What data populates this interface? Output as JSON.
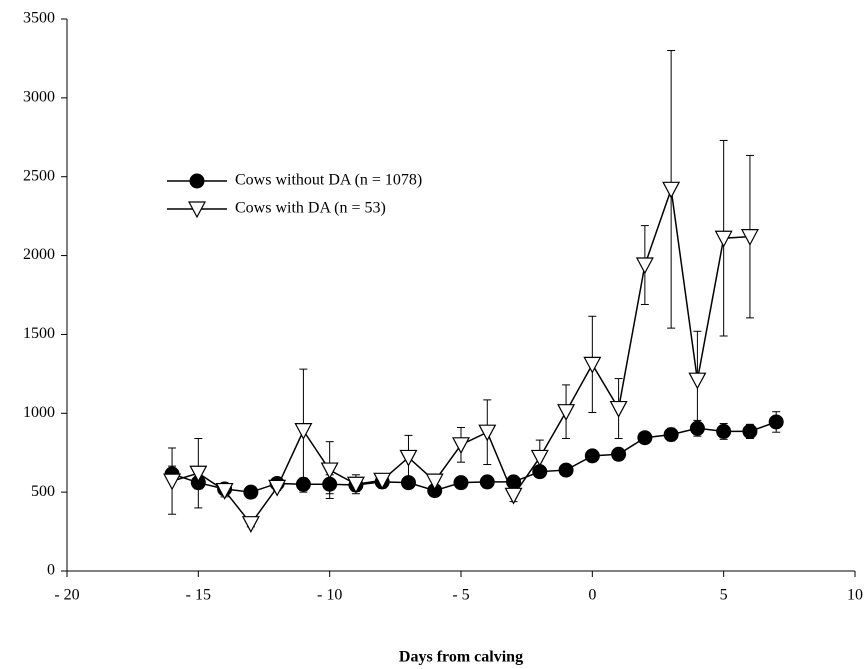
{
  "chart_data": {
    "type": "line",
    "x_label": "Days from calving",
    "xlim": [
      -20,
      10
    ],
    "xticks": [
      {
        "value": -20,
        "label": "- 20"
      },
      {
        "value": -15,
        "label": "- 15"
      },
      {
        "value": -10,
        "label": "- 10"
      },
      {
        "value": -5,
        "label": "- 5"
      },
      0,
      5,
      10
    ],
    "ylim": [
      0,
      3500
    ],
    "yticks": [
      0,
      500,
      1000,
      1500,
      2000,
      2500,
      3000,
      3500
    ],
    "grid": false,
    "legend": "upper left",
    "series": [
      {
        "name": "Cows without  DA (n = 1078)",
        "color": "#000000",
        "marker": "circle",
        "x": [
          -16,
          -15,
          -14,
          -13,
          -12,
          -11,
          -10,
          -9,
          -8,
          -7,
          -6,
          -5,
          -4,
          -3,
          -2,
          -1,
          0,
          1,
          2,
          3,
          4,
          5,
          6,
          7
        ],
        "values": [
          615,
          560,
          520,
          500,
          555,
          550,
          550,
          545,
          565,
          560,
          510,
          560,
          565,
          565,
          630,
          640,
          730,
          740,
          845,
          865,
          905,
          885,
          885,
          945
        ],
        "errors": [
          50,
          40,
          30,
          25,
          30,
          40,
          60,
          40,
          40,
          35,
          25,
          30,
          30,
          30,
          30,
          30,
          30,
          30,
          35,
          40,
          50,
          50,
          45,
          65
        ]
      },
      {
        "name": "Cows with  DA (n = 53)",
        "color": "#000000",
        "marker": "triangle-down",
        "x": [
          -16,
          -15,
          -14,
          -13,
          -12,
          -11,
          -10,
          -9,
          -8,
          -7,
          -6,
          -5,
          -4,
          -3,
          -2,
          -1,
          0,
          1,
          2,
          3,
          4,
          5,
          6
        ],
        "values": [
          570,
          620,
          510,
          300,
          530,
          890,
          640,
          550,
          575,
          720,
          570,
          800,
          880,
          480,
          720,
          1010,
          1310,
          1030,
          1940,
          2420,
          1210,
          2110,
          2120
        ],
        "errors": [
          210,
          220,
          40,
          20,
          20,
          390,
          180,
          60,
          40,
          140,
          30,
          110,
          205,
          40,
          110,
          170,
          305,
          190,
          250,
          880,
          310,
          620,
          515
        ]
      }
    ]
  }
}
